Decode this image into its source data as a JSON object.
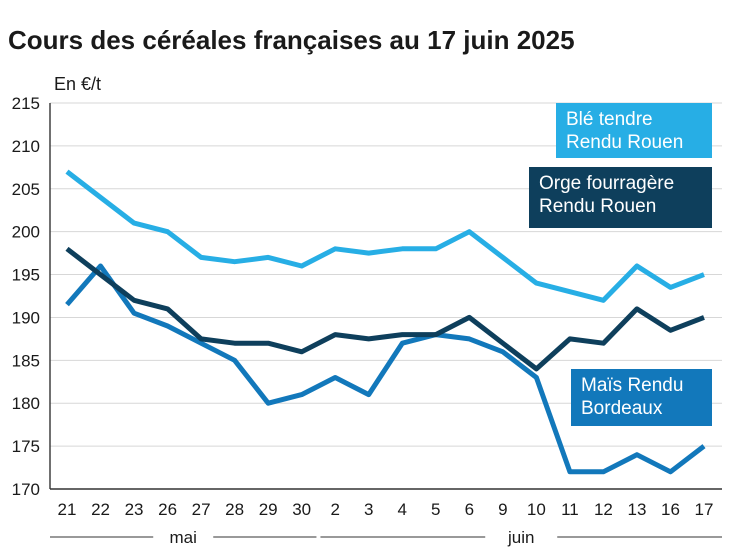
{
  "chart_data": {
    "type": "line",
    "title": "Cours des céréales françaises au 17 juin 2025",
    "ylabel": "En €/t",
    "xlabel": "",
    "ylim": [
      170,
      215
    ],
    "yticks": [
      170,
      175,
      180,
      185,
      190,
      195,
      200,
      205,
      210,
      215
    ],
    "categories": [
      "21",
      "22",
      "23",
      "26",
      "27",
      "28",
      "29",
      "30",
      "2",
      "3",
      "4",
      "5",
      "6",
      "9",
      "10",
      "11",
      "12",
      "13",
      "16",
      "17"
    ],
    "month_groups": [
      {
        "label": "mai",
        "from": "21",
        "to": "30"
      },
      {
        "label": "juin",
        "from": "2",
        "to": "17"
      }
    ],
    "grid": "horizontal",
    "series": [
      {
        "name": "Blé tendre Rendu Rouen",
        "legend_lines": [
          "Blé tendre",
          "Rendu Rouen"
        ],
        "color": "#27aee5",
        "values": [
          207,
          204,
          201,
          200,
          197,
          196.5,
          197,
          196,
          198,
          197.5,
          198,
          198,
          200,
          197,
          194,
          193,
          192,
          196,
          193.5,
          195
        ]
      },
      {
        "name": "Orge fourragère Rendu Rouen",
        "legend_lines": [
          "Orge fourragère",
          "Rendu Rouen"
        ],
        "color": "#0e3f5c",
        "values": [
          198,
          195,
          192,
          191,
          187.5,
          187,
          187,
          186,
          188,
          187.5,
          188,
          188,
          190,
          187,
          184,
          187.5,
          187,
          191,
          188.5,
          190
        ]
      },
      {
        "name": "Maïs Rendu Bordeaux",
        "legend_lines": [
          "Maïs Rendu",
          "Bordeaux"
        ],
        "color": "#1278bb",
        "values": [
          191.5,
          196,
          190.5,
          189,
          187,
          185,
          180,
          181,
          183,
          181,
          187,
          188,
          187.5,
          186,
          183,
          172,
          172,
          174,
          172,
          175
        ]
      }
    ]
  }
}
